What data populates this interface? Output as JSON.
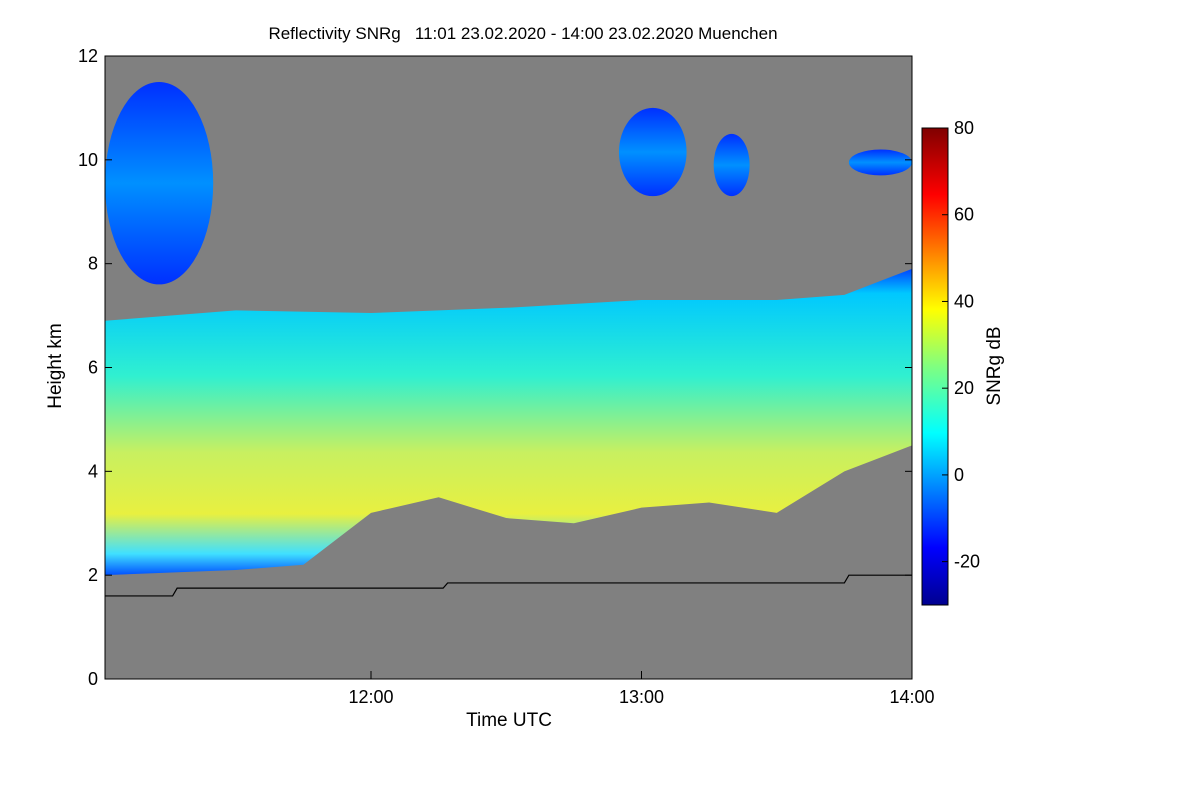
{
  "chart_data": {
    "type": "heatmap",
    "title": "Reflectivity SNRg   11:01 23.02.2020 - 14:00 23.02.2020 Muenchen",
    "xlabel": "Time UTC",
    "ylabel": "Height km",
    "xlim": [
      "11:01",
      "14:00"
    ],
    "ylim": [
      0,
      12
    ],
    "x_ticks": [
      "12:00",
      "13:00",
      "14:00"
    ],
    "y_ticks": [
      "0",
      "2",
      "4",
      "6",
      "8",
      "10",
      "12"
    ],
    "colorbar": {
      "label": "SNRg dB",
      "range": [
        -30,
        80
      ],
      "ticks": [
        "-20",
        "0",
        "20",
        "40",
        "60",
        "80"
      ],
      "colormap": "jet"
    },
    "background_color": "#808080",
    "features": {
      "main_cloud_layer": {
        "top_km": [
          [
            "11:01",
            6.9
          ],
          [
            "11:30",
            7.1
          ],
          [
            "12:00",
            7.05
          ],
          [
            "12:30",
            7.15
          ],
          [
            "13:00",
            7.3
          ],
          [
            "13:30",
            7.3
          ],
          [
            "13:45",
            7.4
          ],
          [
            "14:00",
            7.9
          ]
        ],
        "base_km": [
          [
            "11:01",
            2.0
          ],
          [
            "11:30",
            2.1
          ],
          [
            "11:45",
            2.2
          ],
          [
            "12:00",
            3.2
          ],
          [
            "12:15",
            3.5
          ],
          [
            "12:30",
            3.1
          ],
          [
            "12:45",
            3.0
          ],
          [
            "13:00",
            3.3
          ],
          [
            "13:15",
            3.4
          ],
          [
            "13:30",
            3.2
          ],
          [
            "13:45",
            4.0
          ],
          [
            "14:00",
            4.5
          ]
        ],
        "max_snr_height_km": 3.5,
        "max_snr_db": 35
      },
      "upper_cirrus": [
        {
          "time_range": [
            "11:01",
            "11:25"
          ],
          "height_km": [
            7.6,
            11.5
          ]
        },
        {
          "time_range": [
            "12:55",
            "13:10"
          ],
          "height_km": [
            9.3,
            11.0
          ]
        },
        {
          "time_range": [
            "13:16",
            "13:24"
          ],
          "height_km": [
            9.3,
            10.5
          ]
        },
        {
          "time_range": [
            "13:46",
            "14:00"
          ],
          "height_km": [
            9.7,
            10.2
          ]
        }
      ],
      "boundary_line_km": [
        [
          "11:01",
          1.6
        ],
        [
          "11:16",
          1.6
        ],
        [
          "11:17",
          1.75
        ],
        [
          "12:16",
          1.75
        ],
        [
          "12:17",
          1.85
        ],
        [
          "13:45",
          1.85
        ],
        [
          "13:46",
          2.0
        ],
        [
          "14:00",
          2.0
        ]
      ]
    }
  }
}
